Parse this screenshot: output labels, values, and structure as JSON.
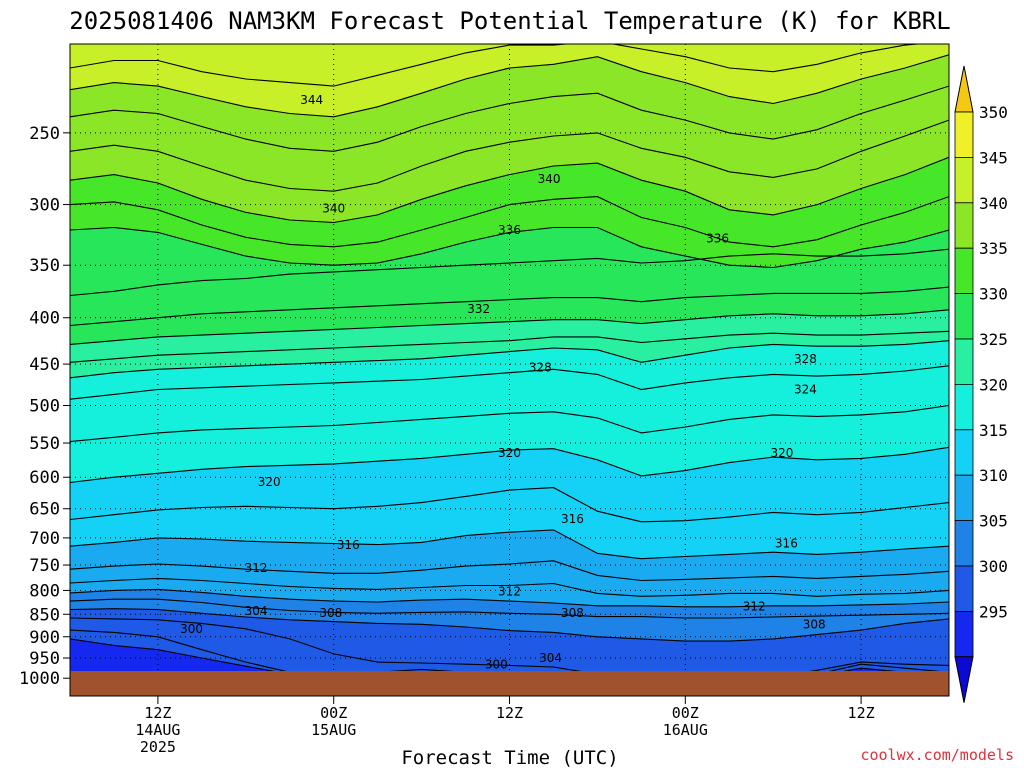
{
  "chart_data": {
    "type": "heatmap",
    "title": "2025081406 NAM3KM Forecast Potential Temperature (K) for KBRL",
    "xlabel": "Forecast Time (UTC)",
    "ylabel": "",
    "y_scale": "log",
    "y_inverted": true,
    "y_ticks": [
      250,
      300,
      350,
      400,
      450,
      500,
      550,
      600,
      650,
      700,
      750,
      800,
      850,
      900,
      950,
      1000
    ],
    "y_range": [
      1000,
      200
    ],
    "x_ticks": [
      {
        "hour": 12,
        "line1": "12Z",
        "line2": "14AUG",
        "line3": "2025"
      },
      {
        "hour": 24,
        "line1": "00Z",
        "line2": "15AUG",
        "line3": ""
      },
      {
        "hour": 36,
        "line1": "12Z",
        "line2": "",
        "line3": ""
      },
      {
        "hour": 48,
        "line1": "00Z",
        "line2": "16AUG",
        "line3": ""
      },
      {
        "hour": 60,
        "line1": "12Z",
        "line2": "",
        "line3": ""
      }
    ],
    "x_range": [
      6,
      66
    ],
    "grid": true,
    "colorbar": {
      "levels": [
        295,
        300,
        305,
        310,
        315,
        320,
        325,
        330,
        335,
        340,
        345,
        350
      ],
      "colors": [
        "#0a0ad2",
        "#1428f0",
        "#1e5ae6",
        "#1e82e6",
        "#19aaf0",
        "#14d2f5",
        "#14f0dc",
        "#28f0a0",
        "#28e65a",
        "#46e628",
        "#8ce628",
        "#c8f028",
        "#f0f028",
        "#f5c814"
      ],
      "labels": [
        "295",
        "300",
        "305",
        "310",
        "315",
        "320",
        "325",
        "330",
        "335",
        "340",
        "345",
        "350"
      ]
    },
    "isentropes": [
      {
        "theta": 300,
        "p": [
          905,
          920,
          930,
          950,
          970,
          990,
          1000,
          990,
          995,
          1000,
          998,
          1000,
          1000,
          1000,
          1000,
          1000,
          1000,
          995,
          975,
          985,
          990
        ]
      },
      {
        "theta": 302,
        "p": [
          885,
          890,
          900,
          930,
          960,
          985,
          1000,
          985,
          978,
          985,
          992,
          1000,
          1000,
          1000,
          1000,
          1000,
          1000,
          990,
          965,
          975,
          985
        ]
      },
      {
        "theta": 304,
        "p": [
          858,
          860,
          862,
          870,
          882,
          905,
          940,
          960,
          962,
          965,
          968,
          972,
          990,
          995,
          1000,
          1000,
          998,
          980,
          960,
          965,
          968
        ]
      },
      {
        "theta": 306,
        "p": [
          840,
          838,
          840,
          848,
          856,
          862,
          866,
          870,
          872,
          878,
          886,
          890,
          900,
          905,
          910,
          910,
          905,
          895,
          885,
          870,
          860
        ]
      },
      {
        "theta": 308,
        "p": [
          822,
          818,
          818,
          825,
          835,
          842,
          846,
          848,
          846,
          845,
          848,
          850,
          855,
          855,
          858,
          858,
          856,
          854,
          852,
          850,
          848
        ]
      },
      {
        "theta": 310,
        "p": [
          805,
          800,
          798,
          804,
          812,
          818,
          822,
          824,
          820,
          818,
          822,
          826,
          832,
          832,
          834,
          834,
          832,
          832,
          830,
          828,
          824
        ]
      },
      {
        "theta": 312,
        "p": [
          785,
          780,
          776,
          780,
          786,
          792,
          796,
          798,
          794,
          790,
          790,
          786,
          806,
          812,
          810,
          806,
          806,
          812,
          808,
          806,
          800
        ]
      },
      {
        "theta": 314,
        "p": [
          758,
          752,
          748,
          752,
          758,
          762,
          766,
          766,
          760,
          752,
          748,
          742,
          770,
          780,
          778,
          775,
          772,
          776,
          772,
          768,
          762
        ]
      },
      {
        "theta": 316,
        "p": [
          715,
          708,
          700,
          702,
          706,
          708,
          710,
          712,
          708,
          696,
          690,
          686,
          728,
          738,
          734,
          730,
          726,
          730,
          726,
          720,
          715
        ]
      },
      {
        "theta": 318,
        "p": [
          668,
          660,
          652,
          648,
          646,
          648,
          650,
          646,
          640,
          630,
          620,
          616,
          654,
          672,
          670,
          664,
          656,
          660,
          656,
          648,
          640
        ]
      },
      {
        "theta": 320,
        "p": [
          608,
          600,
          594,
          588,
          584,
          582,
          580,
          576,
          572,
          566,
          560,
          558,
          574,
          598,
          590,
          578,
          570,
          574,
          572,
          566,
          556
        ]
      },
      {
        "theta": 322,
        "p": [
          548,
          542,
          536,
          532,
          530,
          528,
          526,
          522,
          518,
          514,
          510,
          508,
          516,
          536,
          528,
          518,
          512,
          514,
          512,
          508,
          500
        ]
      },
      {
        "theta": 324,
        "p": [
          492,
          486,
          480,
          478,
          476,
          474,
          472,
          470,
          468,
          464,
          460,
          456,
          462,
          480,
          472,
          466,
          462,
          464,
          462,
          458,
          452
        ]
      },
      {
        "theta": 326,
        "p": [
          466,
          460,
          456,
          454,
          452,
          450,
          448,
          446,
          444,
          440,
          436,
          432,
          434,
          448,
          440,
          432,
          428,
          430,
          430,
          428,
          424
        ]
      },
      {
        "theta": 328,
        "p": [
          448,
          444,
          440,
          438,
          436,
          434,
          432,
          430,
          428,
          426,
          424,
          420,
          420,
          426,
          422,
          418,
          416,
          418,
          418,
          416,
          414
        ]
      },
      {
        "theta": 330,
        "p": [
          428,
          424,
          420,
          418,
          416,
          414,
          412,
          410,
          408,
          406,
          404,
          402,
          402,
          406,
          402,
          398,
          396,
          398,
          398,
          396,
          392
        ]
      },
      {
        "theta": 332,
        "p": [
          408,
          404,
          400,
          396,
          394,
          392,
          390,
          388,
          386,
          384,
          382,
          380,
          380,
          384,
          380,
          378,
          376,
          376,
          376,
          374,
          370
        ]
      },
      {
        "theta": 334,
        "p": [
          378,
          374,
          368,
          364,
          362,
          358,
          356,
          354,
          352,
          350,
          348,
          346,
          344,
          348,
          346,
          342,
          340,
          342,
          342,
          340,
          336
        ]
      },
      {
        "theta": 336,
        "p": [
          320,
          318,
          322,
          332,
          342,
          348,
          350,
          348,
          340,
          330,
          322,
          318,
          318,
          334,
          342,
          350,
          352,
          346,
          336,
          330,
          320
        ]
      },
      {
        "theta": 338,
        "p": [
          300,
          298,
          304,
          316,
          326,
          332,
          334,
          330,
          320,
          310,
          300,
          296,
          294,
          310,
          318,
          330,
          334,
          328,
          316,
          306,
          294
        ]
      },
      {
        "theta": 340,
        "p": [
          282,
          278,
          284,
          296,
          306,
          312,
          314,
          308,
          296,
          286,
          278,
          272,
          270,
          282,
          290,
          304,
          308,
          300,
          288,
          278,
          266
        ]
      },
      {
        "theta": 342,
        "p": [
          262,
          258,
          262,
          272,
          282,
          288,
          290,
          284,
          272,
          262,
          256,
          252,
          250,
          260,
          266,
          276,
          280,
          274,
          262,
          252,
          242
        ]
      },
      {
        "theta": 344,
        "p": [
          240,
          236,
          238,
          246,
          254,
          260,
          262,
          256,
          246,
          238,
          232,
          228,
          226,
          236,
          242,
          250,
          254,
          248,
          238,
          230,
          222
        ]
      },
      {
        "theta": 346,
        "p": [
          224,
          220,
          222,
          228,
          234,
          238,
          240,
          234,
          226,
          218,
          212,
          210,
          206,
          214,
          220,
          228,
          232,
          226,
          218,
          212,
          205
        ]
      },
      {
        "theta": 348,
        "p": [
          212,
          208,
          208,
          214,
          218,
          220,
          222,
          216,
          210,
          204,
          200,
          200,
          198,
          202,
          206,
          212,
          214,
          210,
          204,
          200,
          198
        ]
      }
    ],
    "contour_labels": [
      {
        "text": "344",
        "hour": 22.5,
        "p": 230
      },
      {
        "text": "340",
        "hour": 38.7,
        "p": 281
      },
      {
        "text": "340",
        "hour": 24.0,
        "p": 303
      },
      {
        "text": "336",
        "hour": 36.0,
        "p": 320
      },
      {
        "text": "336",
        "hour": 50.2,
        "p": 327
      },
      {
        "text": "332",
        "hour": 33.9,
        "p": 391
      },
      {
        "text": "328",
        "hour": 38.1,
        "p": 454
      },
      {
        "text": "328",
        "hour": 56.2,
        "p": 444
      },
      {
        "text": "324",
        "hour": 56.2,
        "p": 480
      },
      {
        "text": "320",
        "hour": 36.0,
        "p": 564
      },
      {
        "text": "320",
        "hour": 54.6,
        "p": 564
      },
      {
        "text": "320",
        "hour": 19.6,
        "p": 607
      },
      {
        "text": "316",
        "hour": 40.3,
        "p": 667
      },
      {
        "text": "316",
        "hour": 25.0,
        "p": 713
      },
      {
        "text": "316",
        "hour": 54.9,
        "p": 710
      },
      {
        "text": "312",
        "hour": 18.7,
        "p": 756
      },
      {
        "text": "312",
        "hour": 36.0,
        "p": 802
      },
      {
        "text": "312",
        "hour": 52.7,
        "p": 833
      },
      {
        "text": "304",
        "hour": 18.7,
        "p": 843
      },
      {
        "text": "308",
        "hour": 23.8,
        "p": 847
      },
      {
        "text": "308",
        "hour": 40.3,
        "p": 847
      },
      {
        "text": "308",
        "hour": 56.8,
        "p": 872
      },
      {
        "text": "300",
        "hour": 14.3,
        "p": 882
      },
      {
        "text": "304",
        "hour": 38.8,
        "p": 950
      },
      {
        "text": "300",
        "hour": 35.1,
        "p": 966
      }
    ],
    "ground_color": "#a0522d"
  },
  "watermark": "coolwx.com/models"
}
